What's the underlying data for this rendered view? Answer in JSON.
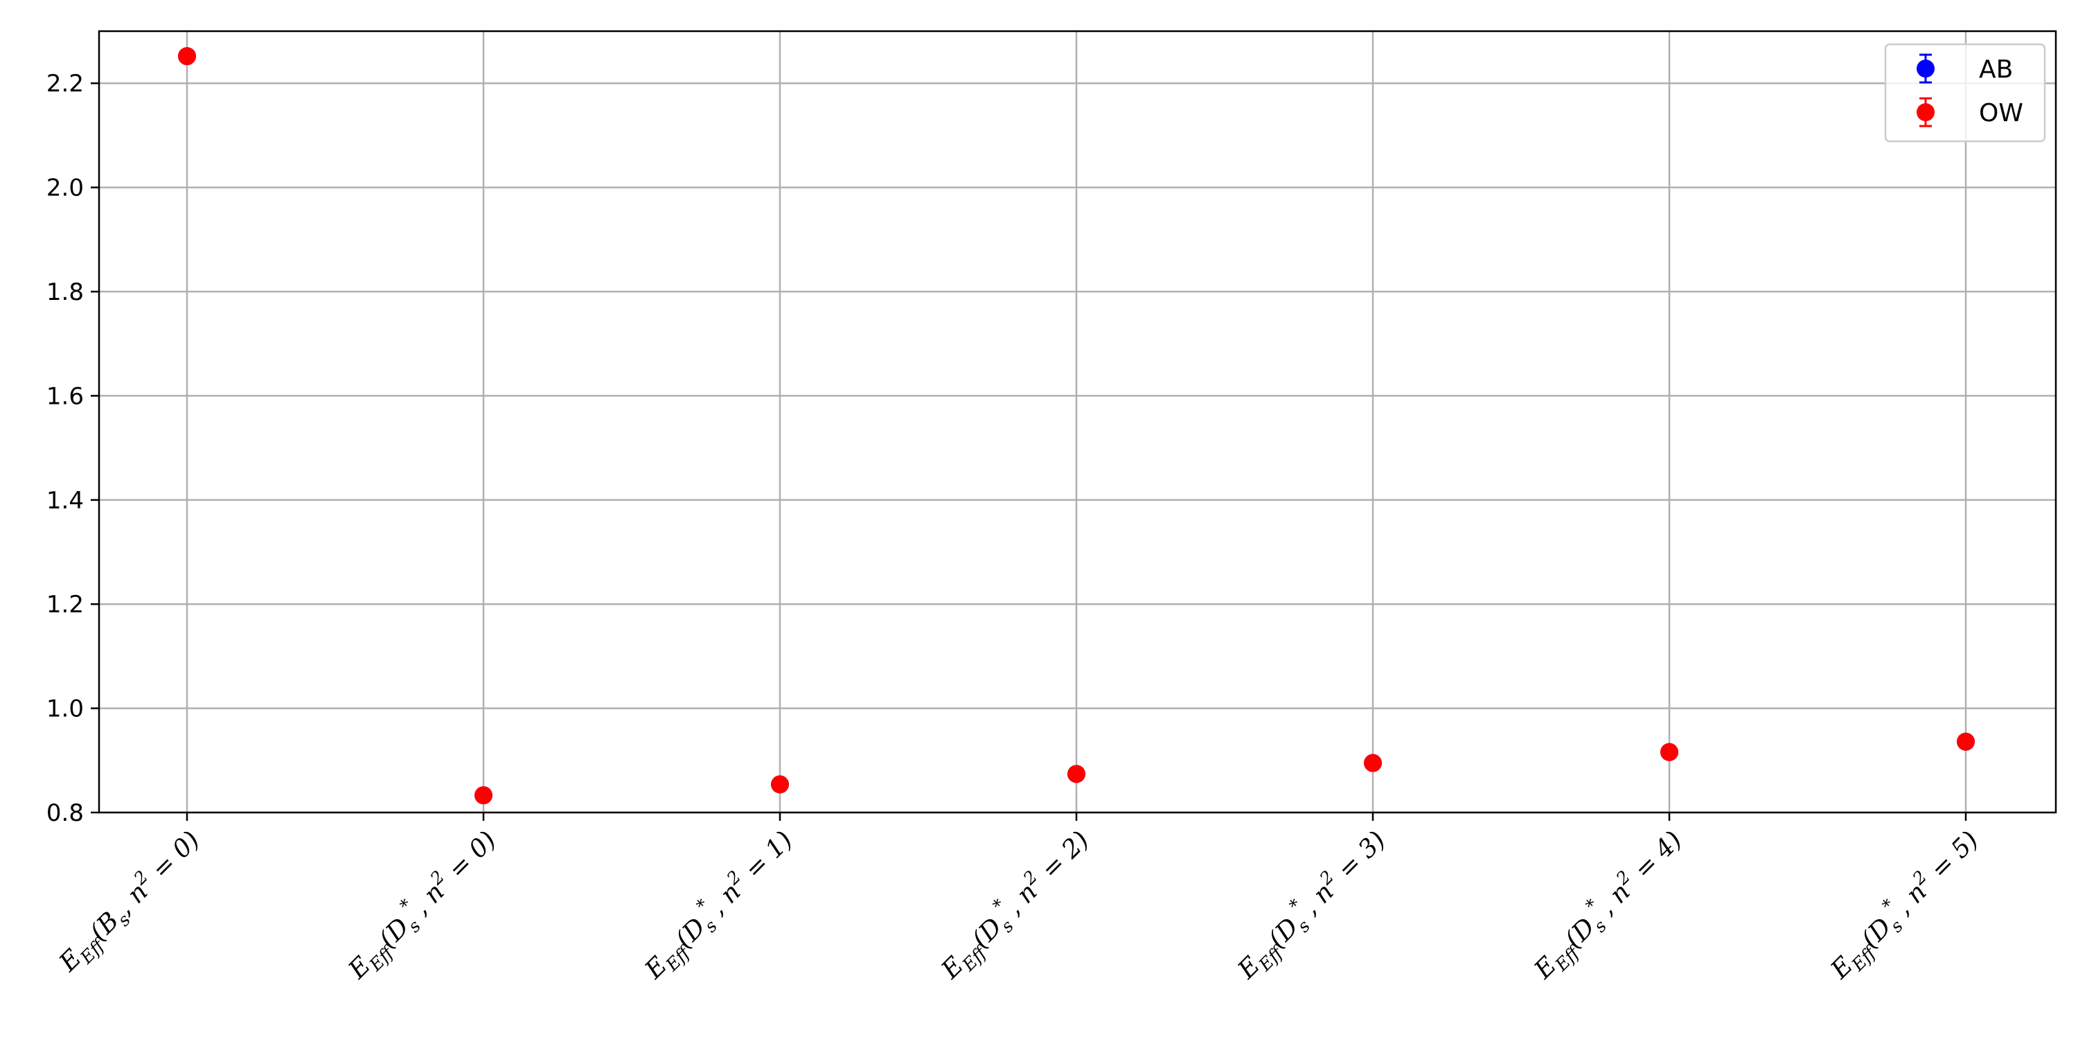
{
  "chart_data": {
    "type": "scatter",
    "title": "",
    "xlabel": "",
    "ylabel": "",
    "grid": true,
    "legend_position": "top-right",
    "ylim": [
      0.8,
      2.3
    ],
    "yticks": [
      0.8,
      1.0,
      1.2,
      1.4,
      1.6,
      1.8,
      2.0,
      2.2
    ],
    "categories": [
      {
        "main": "E",
        "sub": "Eff",
        "particle": "B",
        "psub": "s",
        "star": false,
        "n2": "0"
      },
      {
        "main": "E",
        "sub": "Eff",
        "particle": "D",
        "psub": "s",
        "star": true,
        "n2": "0"
      },
      {
        "main": "E",
        "sub": "Eff",
        "particle": "D",
        "psub": "s",
        "star": true,
        "n2": "1"
      },
      {
        "main": "E",
        "sub": "Eff",
        "particle": "D",
        "psub": "s",
        "star": true,
        "n2": "2"
      },
      {
        "main": "E",
        "sub": "Eff",
        "particle": "D",
        "psub": "s",
        "star": true,
        "n2": "3"
      },
      {
        "main": "E",
        "sub": "Eff",
        "particle": "D",
        "psub": "s",
        "star": true,
        "n2": "4"
      },
      {
        "main": "E",
        "sub": "Eff",
        "particle": "D",
        "psub": "s",
        "star": true,
        "n2": "5"
      }
    ],
    "series": [
      {
        "name": "AB",
        "color": "#0000ff",
        "values": [
          2.252,
          0.833,
          0.854,
          0.874,
          0.895,
          0.916,
          0.936
        ]
      },
      {
        "name": "OW",
        "color": "#ff0000",
        "values": [
          2.252,
          0.833,
          0.854,
          0.874,
          0.895,
          0.916,
          0.936
        ]
      }
    ]
  }
}
